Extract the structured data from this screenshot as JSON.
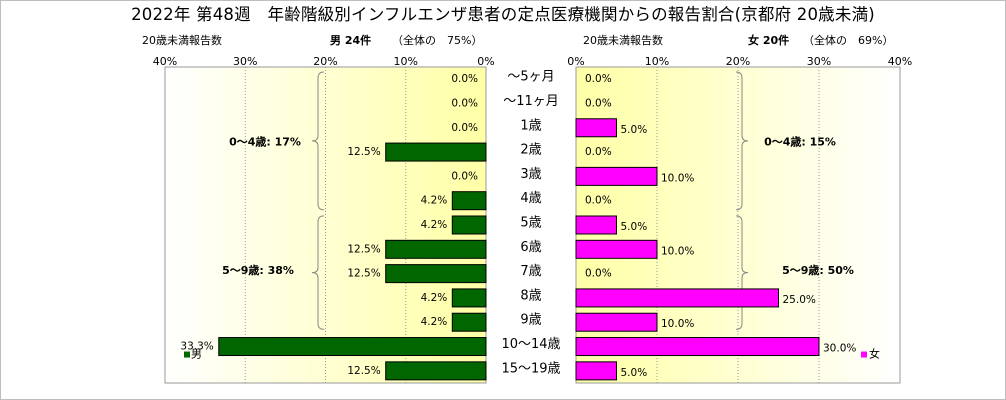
{
  "title": "2022年 第48週　年齢階級別インフルエンザ患者の定点医療機関からの報告割合(京都府 20歳未満)",
  "male": {
    "axis_caption": "20歳未満報告数",
    "count_label": "男 24件",
    "share_label": "（全体の　75%）",
    "legend": "男",
    "color": "#006600"
  },
  "female": {
    "axis_caption": "20歳未満報告数",
    "count_label": "女 20件",
    "share_label": "（全体の　69%）",
    "legend": "女",
    "color": "#ff00ff"
  },
  "groups": {
    "male_0_4": "0～4歳: 17%",
    "male_5_9": "5～9歳: 38%",
    "female_0_4": "0～4歳: 15%",
    "female_5_9": "5～9歳: 50%"
  },
  "chart_data": {
    "type": "bar",
    "title": "2022年 第48週　年齢階級別インフルエンザ患者の定点医療機関からの報告割合(京都府 20歳未満)",
    "categories": [
      "～5ヶ月",
      "～11ヶ月",
      "1歳",
      "2歳",
      "3歳",
      "4歳",
      "5歳",
      "6歳",
      "7歳",
      "8歳",
      "9歳",
      "10～14歳",
      "15～19歳"
    ],
    "series": [
      {
        "name": "男",
        "values": [
          0.0,
          0.0,
          0.0,
          12.5,
          0.0,
          4.2,
          4.2,
          12.5,
          12.5,
          4.2,
          4.2,
          33.3,
          12.5
        ]
      },
      {
        "name": "女",
        "values": [
          0.0,
          0.0,
          5.0,
          0.0,
          10.0,
          0.0,
          5.0,
          10.0,
          0.0,
          25.0,
          10.0,
          30.0,
          5.0
        ]
      }
    ],
    "value_labels": {
      "男": [
        "0.0%",
        "0.0%",
        "0.0%",
        "12.5%",
        "0.0%",
        "4.2%",
        "4.2%",
        "12.5%",
        "12.5%",
        "4.2%",
        "4.2%",
        "33.3%",
        "12.5%"
      ],
      "女": [
        "0.0%",
        "0.0%",
        "5.0%",
        "0.0%",
        "10.0%",
        "0.0%",
        "5.0%",
        "10.0%",
        "0.0%",
        "25.0%",
        "10.0%",
        "30.0%",
        "5.0%"
      ]
    },
    "xlim": [
      0,
      40
    ],
    "tick_values": [
      40,
      30,
      20,
      10,
      0
    ],
    "tick_labels": [
      "40%",
      "30%",
      "20%",
      "10%",
      "0%"
    ],
    "grid": true,
    "legend_position": "bottom"
  }
}
